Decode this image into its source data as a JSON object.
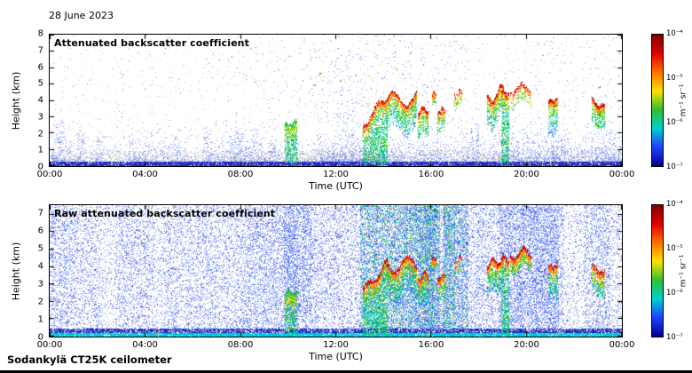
{
  "page": {
    "date_label": "28 June 2023",
    "footer_label": "Sodankylä CT25K ceilometer"
  },
  "colors": {
    "jet_top_to_bottom": [
      "#800000",
      "#e00000",
      "#ff7000",
      "#ffe000",
      "#30c030",
      "#00d0d0",
      "#2040ff",
      "#000090"
    ],
    "surface_line": "#2233bb",
    "gray_speckle": "#c8c8c8"
  },
  "chart_data": [
    {
      "type": "heatmap",
      "title": "Attenuated backscatter coefficient",
      "xlabel": "Time (UTC)",
      "ylabel": "Height (km)",
      "xlim_hours": [
        0,
        24
      ],
      "ylim_km": [
        0,
        8
      ],
      "x_ticks": [
        "00:00",
        "04:00",
        "08:00",
        "12:00",
        "16:00",
        "20:00",
        "00:00"
      ],
      "y_ticks": [
        0,
        1,
        2,
        3,
        4,
        5,
        6,
        7,
        8
      ],
      "colorbar": {
        "ticks": [
          "10⁻⁴",
          "10⁻⁵",
          "10⁻⁶",
          "10⁻⁷"
        ],
        "unit": "m⁻¹ sr⁻¹",
        "scale": "log",
        "range_m1sr1": [
          1e-07,
          0.0001
        ]
      },
      "noise": {
        "style": "clear_air",
        "gray_band_top_km": 0.95,
        "gray_density": 0.4,
        "blue_density": 0.34,
        "blue_scale_height_km": 0.75,
        "surface_line_top_km": 0.22,
        "high_speckle_density": 0.012,
        "high_boost": {
          "t0": 9.5,
          "t1": 17.5,
          "mult": 3
        }
      },
      "plumes": [
        {
          "t": 0.4,
          "h": 2.8
        },
        {
          "t": 1.3,
          "h": 2.2
        },
        {
          "t": 2.1,
          "h": 1.8
        },
        {
          "t": 5.3,
          "h": 2.0
        },
        {
          "t": 6.6,
          "h": 2.3
        },
        {
          "t": 7.9,
          "h": 2.4
        },
        {
          "t": 8.6,
          "h": 2.2
        },
        {
          "t": 9.3,
          "h": 1.8
        },
        {
          "t": 12.6,
          "h": 2.4
        },
        {
          "t": 17.8,
          "h": 2.6
        },
        {
          "t": 21.6,
          "h": 2.0
        }
      ],
      "events": [
        {
          "t0": 9.85,
          "t1": 10.35,
          "top0": 2.5,
          "top1": 2.7,
          "base": 0.15,
          "cap": "green",
          "tail_style": "green"
        },
        {
          "t0": 13.15,
          "t1": 14.15,
          "top0": 2.6,
          "top1": 4.3,
          "base": 0.1,
          "wiggle": 0.25,
          "tail_style": "green"
        },
        {
          "t0": 14.15,
          "t1": 15.35,
          "top0": 4.1,
          "top1": 4.2,
          "tail": 2.0,
          "wiggle": 0.45
        },
        {
          "t0": 15.45,
          "t1": 15.85,
          "top0": 3.4,
          "top1": 3.6,
          "tail": 1.6,
          "wiggle": 0.2
        },
        {
          "t0": 16.05,
          "t1": 16.2,
          "top0": 4.5,
          "top1": 4.55,
          "tail": 0.7
        },
        {
          "t0": 16.25,
          "t1": 16.55,
          "top0": 3.4,
          "top1": 3.5,
          "tail": 1.3
        },
        {
          "t0": 16.95,
          "t1": 17.25,
          "top0": 4.4,
          "top1": 4.6,
          "tail": 0.9,
          "sparse": true
        },
        {
          "t0": 18.35,
          "t1": 19.0,
          "top0": 4.0,
          "top1": 4.7,
          "tail": 1.8,
          "wiggle": 0.35
        },
        {
          "t0": 18.95,
          "t1": 19.25,
          "top0": 4.6,
          "top1": 4.4,
          "base": 0.1,
          "tail_style": "green"
        },
        {
          "t0": 19.3,
          "t1": 20.15,
          "top0": 4.7,
          "top1": 4.9,
          "tail": 1.0,
          "wiggle": 0.3,
          "sparse": true
        },
        {
          "t0": 20.9,
          "t1": 21.3,
          "top0": 4.0,
          "top1": 4.1,
          "tail": 2.2
        },
        {
          "t0": 22.75,
          "t1": 23.25,
          "top0": 4.1,
          "top1": 3.6,
          "tail": 1.5
        }
      ],
      "dots": [
        {
          "t": 10.95,
          "h": 6.6
        },
        {
          "t": 11.35,
          "h": 5.6
        },
        {
          "t": 11.1,
          "h": 4.9
        },
        {
          "t": 12.2,
          "h": 5.2
        },
        {
          "t": 13.5,
          "h": 5.3
        },
        {
          "t": 14.55,
          "h": 5.9
        },
        {
          "t": 15.1,
          "h": 6.9
        },
        {
          "t": 16.4,
          "h": 6.5
        },
        {
          "t": 23.05,
          "h": 4.8
        }
      ]
    },
    {
      "type": "heatmap",
      "title": "Raw attenuated backscatter coefficient",
      "xlabel": "Time (UTC)",
      "ylabel": "Height (km)",
      "xlim_hours": [
        0,
        24
      ],
      "ylim_km": [
        0,
        7.5
      ],
      "x_ticks": [
        "00:00",
        "04:00",
        "08:00",
        "12:00",
        "16:00",
        "20:00",
        "00:00"
      ],
      "y_ticks": [
        0,
        1,
        2,
        3,
        4,
        5,
        6,
        7
      ],
      "colorbar": {
        "ticks": [
          "10⁻⁴",
          "10⁻⁵",
          "10⁻⁶",
          "10⁻⁷"
        ],
        "unit": "m⁻¹ sr⁻¹",
        "scale": "log",
        "range_m1sr1": [
          1e-07,
          0.0001
        ]
      },
      "noise": {
        "style": "raw",
        "speckle_density": 0.2,
        "gray_density": 0.07,
        "surface_cyan_top_km": 0.2,
        "surface_blue_top_km": 0.45
      },
      "bands": [
        {
          "t0": 9.8,
          "t1": 10.45,
          "mult": 2.0
        },
        {
          "t0": 10.6,
          "t1": 10.95,
          "mult": 1.6
        },
        {
          "t0": 13.0,
          "t1": 16.35,
          "mult": 2.5,
          "green": 0.3
        },
        {
          "t0": 16.45,
          "t1": 17.55,
          "mult": 2.1,
          "green": 0.2
        },
        {
          "t0": 16.5,
          "t1": 17.0,
          "mult": 1.5,
          "green": 0.35
        },
        {
          "t0": 18.8,
          "t1": 21.35,
          "mult": 1.7
        },
        {
          "t0": 22.9,
          "t1": 23.45,
          "mult": 1.5
        },
        {
          "t0": 2.1,
          "t1": 2.7,
          "mult": 0.45
        },
        {
          "t0": 4.35,
          "t1": 4.75,
          "mult": 0.6
        },
        {
          "t0": 21.55,
          "t1": 22.4,
          "mult": 0.55
        },
        {
          "t0": 23.55,
          "t1": 24.0,
          "mult": 0.7
        }
      ],
      "events": [
        {
          "t0": 9.85,
          "t1": 10.35,
          "top0": 2.5,
          "top1": 2.7,
          "base": 0.15,
          "cap": "green",
          "tail_style": "green"
        },
        {
          "t0": 13.15,
          "t1": 14.15,
          "top0": 2.6,
          "top1": 4.3,
          "base": 0.1,
          "wiggle": 0.25,
          "tail_style": "green"
        },
        {
          "t0": 14.15,
          "t1": 15.35,
          "top0": 4.1,
          "top1": 4.2,
          "tail": 2.0,
          "wiggle": 0.45
        },
        {
          "t0": 15.45,
          "t1": 15.85,
          "top0": 3.4,
          "top1": 3.6,
          "tail": 1.6,
          "wiggle": 0.2
        },
        {
          "t0": 16.05,
          "t1": 16.2,
          "top0": 4.5,
          "top1": 4.55,
          "tail": 0.7
        },
        {
          "t0": 16.25,
          "t1": 16.55,
          "top0": 3.4,
          "top1": 3.5,
          "tail": 1.3
        },
        {
          "t0": 16.95,
          "t1": 17.25,
          "top0": 4.4,
          "top1": 4.6,
          "tail": 0.9,
          "sparse": true
        },
        {
          "t0": 18.35,
          "t1": 19.0,
          "top0": 4.0,
          "top1": 4.7,
          "tail": 1.8,
          "wiggle": 0.35
        },
        {
          "t0": 18.95,
          "t1": 19.25,
          "top0": 4.6,
          "top1": 4.4,
          "base": 0.1,
          "tail_style": "green"
        },
        {
          "t0": 19.3,
          "t1": 20.15,
          "top0": 4.7,
          "top1": 4.9,
          "tail": 1.0,
          "wiggle": 0.3
        },
        {
          "t0": 20.9,
          "t1": 21.3,
          "top0": 4.0,
          "top1": 4.1,
          "tail": 2.2
        },
        {
          "t0": 22.75,
          "t1": 23.25,
          "top0": 4.1,
          "top1": 3.6,
          "tail": 1.5
        }
      ],
      "dots": [
        {
          "t": 19.6,
          "h": 4.9
        },
        {
          "t": 21.0,
          "h": 4.0
        },
        {
          "t": 23.1,
          "h": 3.9
        }
      ]
    }
  ]
}
